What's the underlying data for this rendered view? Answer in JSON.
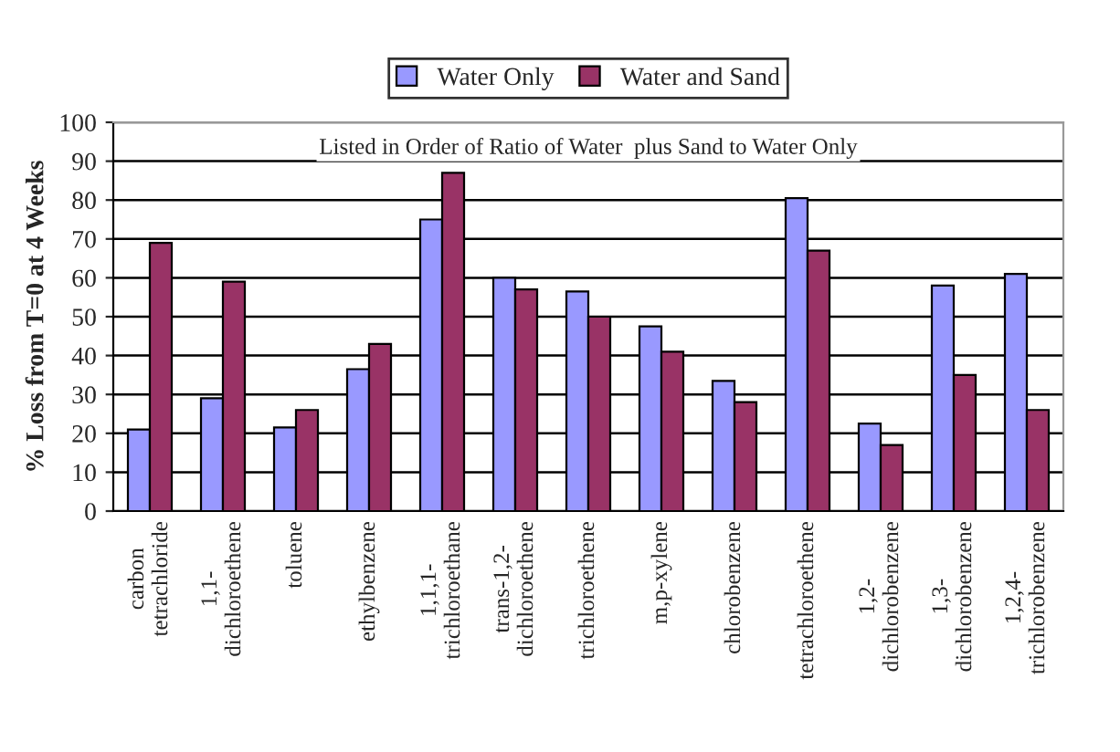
{
  "chart_data": {
    "type": "bar",
    "ylabel": "% Loss from T=0 at 4 Weeks",
    "categories": [
      "carbon\ntetrachloride",
      "1,1-\ndichloroethene",
      "toluene",
      "ethylbenzene",
      "1,1,1-\ntrichloroethane",
      "trans-1,2-\ndichloroethene",
      "trichloroethene",
      "m,p-xylene",
      "chlorobenzene",
      "tetrachloroethene",
      "1,2-\ndichlorobenzene",
      "1,3-\ndichlorobenzene",
      "1,2,4-\ntrichlorobenzene"
    ],
    "series": [
      {
        "name": "Water Only",
        "color": "#9999ff",
        "values": [
          21,
          29,
          21.5,
          36.5,
          75,
          60,
          56.5,
          47.5,
          33.5,
          80.5,
          22.5,
          58,
          61
        ]
      },
      {
        "name": "Water and Sand",
        "color": "#993366",
        "values": [
          69,
          59,
          26,
          43,
          87,
          57,
          50,
          41,
          28,
          67,
          17,
          35,
          26
        ]
      }
    ],
    "ylim": [
      0,
      100
    ],
    "yticks": [
      0,
      10,
      20,
      30,
      40,
      50,
      60,
      70,
      80,
      90,
      100
    ],
    "grid": "y",
    "legend": "top",
    "annotations": [
      "Listed in Order of Ratio of Water  plus Sand to Water Only"
    ]
  }
}
